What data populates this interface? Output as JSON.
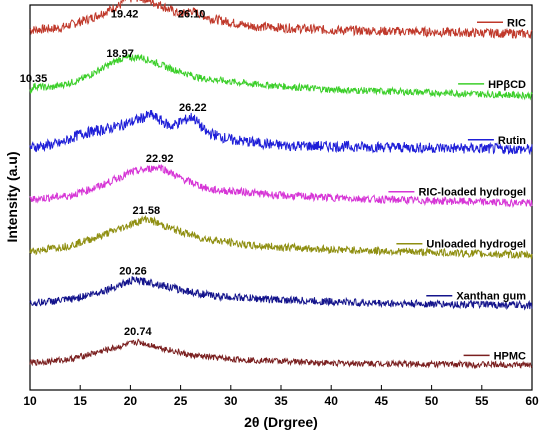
{
  "chart_data": {
    "type": "line",
    "xlabel": "2θ (Drgree)",
    "ylabel": "Intensity (a.u)",
    "xlim": [
      10,
      60
    ],
    "x_ticks": [
      10,
      15,
      20,
      25,
      30,
      35,
      40,
      45,
      50,
      55,
      60
    ],
    "y_ticks_shown": false,
    "grid": false,
    "legend_placement": "right, beside each trace",
    "series": [
      {
        "name": "RIC",
        "color": "#c0392b",
        "baseline": 0.935,
        "noise": 0.012,
        "profile": [
          [
            10,
            0.0
          ],
          [
            13,
            0.005
          ],
          [
            16,
            0.03
          ],
          [
            19,
            0.065
          ],
          [
            19.42,
            0.08
          ],
          [
            21,
            0.085
          ],
          [
            23,
            0.065
          ],
          [
            25,
            0.04
          ],
          [
            26.1,
            0.05
          ],
          [
            28,
            0.03
          ],
          [
            32,
            0.01
          ],
          [
            40,
            0.0
          ],
          [
            60,
            -0.01
          ]
        ],
        "peak_labels": [
          {
            "x": 19.42,
            "text": "19.42",
            "y": 0.968
          },
          {
            "x": 26.1,
            "text": "26.10",
            "y": 0.968
          }
        ]
      },
      {
        "name": "HPβCD",
        "color": "#3ccf2a",
        "baseline": 0.775,
        "noise": 0.009,
        "profile": [
          [
            10,
            0.0
          ],
          [
            10.35,
            0.015
          ],
          [
            12,
            0.01
          ],
          [
            15,
            0.03
          ],
          [
            18.97,
            0.085
          ],
          [
            21,
            0.09
          ],
          [
            24,
            0.06
          ],
          [
            27,
            0.035
          ],
          [
            32,
            0.02
          ],
          [
            40,
            0.005
          ],
          [
            60,
            -0.01
          ]
        ],
        "peak_labels": [
          {
            "x": 10.35,
            "text": "10.35",
            "y": 0.8
          },
          {
            "x": 18.97,
            "text": "18.97",
            "y": 0.865
          }
        ]
      },
      {
        "name": "Rutin",
        "color": "#1f1fd8",
        "baseline": 0.63,
        "noise": 0.014,
        "profile": [
          [
            10,
            0.0
          ],
          [
            13,
            0.01
          ],
          [
            15,
            0.035
          ],
          [
            18,
            0.05
          ],
          [
            20,
            0.065
          ],
          [
            22,
            0.085
          ],
          [
            24,
            0.055
          ],
          [
            26.22,
            0.08
          ],
          [
            27.5,
            0.04
          ],
          [
            30,
            0.02
          ],
          [
            35,
            0.005
          ],
          [
            60,
            -0.005
          ]
        ],
        "peak_labels": [
          {
            "x": 26.22,
            "text": "26.22",
            "y": 0.725
          }
        ]
      },
      {
        "name": "RIC-loaded hydrogel",
        "color": "#d635d6",
        "baseline": 0.495,
        "noise": 0.01,
        "profile": [
          [
            10,
            0.0
          ],
          [
            14,
            0.01
          ],
          [
            17,
            0.035
          ],
          [
            20,
            0.07
          ],
          [
            22.92,
            0.085
          ],
          [
            25,
            0.055
          ],
          [
            28,
            0.025
          ],
          [
            31,
            0.02
          ],
          [
            35,
            0.01
          ],
          [
            45,
            0.0
          ],
          [
            60,
            -0.01
          ]
        ],
        "peak_labels": [
          {
            "x": 22.92,
            "text": "22.92",
            "y": 0.592
          }
        ]
      },
      {
        "name": "Unloaded hydrogel",
        "color": "#8f8f11",
        "baseline": 0.36,
        "noise": 0.01,
        "profile": [
          [
            10,
            0.0
          ],
          [
            14,
            0.015
          ],
          [
            17,
            0.04
          ],
          [
            20,
            0.07
          ],
          [
            21.58,
            0.085
          ],
          [
            24,
            0.06
          ],
          [
            27,
            0.035
          ],
          [
            32,
            0.015
          ],
          [
            40,
            0.005
          ],
          [
            60,
            -0.01
          ]
        ],
        "peak_labels": [
          {
            "x": 21.58,
            "text": "21.58",
            "y": 0.457
          }
        ]
      },
      {
        "name": "Xanthan gum",
        "color": "#14148c",
        "baseline": 0.225,
        "noise": 0.01,
        "profile": [
          [
            10,
            0.0
          ],
          [
            14,
            0.01
          ],
          [
            17,
            0.03
          ],
          [
            20.26,
            0.06
          ],
          [
            22,
            0.055
          ],
          [
            25,
            0.035
          ],
          [
            28,
            0.02
          ],
          [
            34,
            0.01
          ],
          [
            45,
            0.0
          ],
          [
            60,
            -0.005
          ]
        ],
        "peak_labels": [
          {
            "x": 20.26,
            "text": "20.26",
            "y": 0.3
          }
        ]
      },
      {
        "name": "HPMC",
        "color": "#7a1f1f",
        "baseline": 0.07,
        "noise": 0.008,
        "profile": [
          [
            10,
            0.0
          ],
          [
            14,
            0.01
          ],
          [
            17,
            0.03
          ],
          [
            20.74,
            0.055
          ],
          [
            23,
            0.04
          ],
          [
            26,
            0.02
          ],
          [
            30,
            0.01
          ],
          [
            40,
            0.0
          ],
          [
            60,
            -0.005
          ]
        ],
        "peak_labels": [
          {
            "x": 20.74,
            "text": "20.74",
            "y": 0.143
          }
        ]
      }
    ]
  }
}
